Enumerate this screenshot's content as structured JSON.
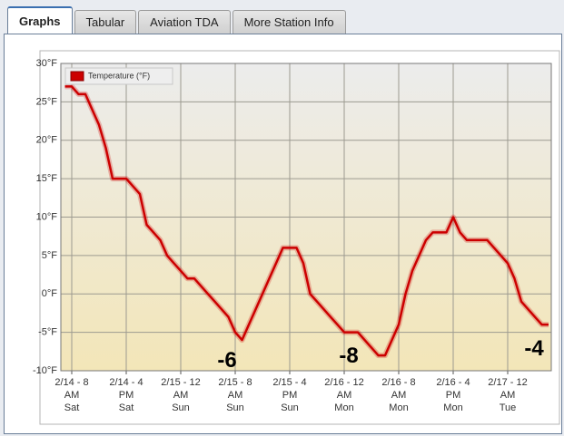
{
  "tabs": [
    "Graphs",
    "Tabular",
    "Aviation TDA",
    "More Station Info"
  ],
  "active_tab": 0,
  "chart_data": {
    "type": "line",
    "x": [
      7,
      8,
      9,
      10,
      11,
      12,
      13,
      14,
      15,
      16,
      17,
      18,
      19,
      20,
      21,
      22,
      23,
      24,
      25,
      26,
      27,
      28,
      29,
      30,
      31,
      32,
      33,
      34,
      35,
      36,
      37,
      38,
      39,
      40,
      41,
      42,
      43,
      44,
      45,
      46,
      47,
      48,
      49,
      50,
      51,
      52,
      53,
      54,
      55,
      56,
      57,
      58,
      59,
      60,
      61,
      62,
      63,
      64,
      65,
      66,
      67,
      68,
      69,
      70,
      71,
      72,
      73,
      74,
      75,
      76,
      77,
      78
    ],
    "series": [
      {
        "name": "Temperature (°F)",
        "color": "#cc0000",
        "values": [
          27,
          27,
          26,
          26,
          24,
          22,
          19,
          15,
          15,
          15,
          14,
          13,
          9,
          8,
          7,
          5,
          4,
          3,
          2,
          2,
          1,
          0,
          -1,
          -2,
          -3,
          -5,
          -6,
          -4,
          -2,
          0,
          2,
          4,
          6,
          6,
          6,
          4,
          0,
          -1,
          -2,
          -3,
          -4,
          -5,
          -5,
          -5,
          -6,
          -7,
          -8,
          -8,
          -6,
          -4,
          0,
          3,
          5,
          7,
          8,
          8,
          8,
          10,
          8,
          7,
          7,
          7,
          7,
          6,
          5,
          4,
          2,
          -1,
          -2,
          -3,
          -4,
          -4
        ]
      }
    ],
    "xlim": [
      6.4,
      78.4
    ],
    "xticks": [
      {
        "value": 8,
        "label": "2/14 - 8\nAM\nSat"
      },
      {
        "value": 16,
        "label": "2/14 - 4\nPM\nSat"
      },
      {
        "value": 24,
        "label": "2/15 - 12\nAM\nSun"
      },
      {
        "value": 32,
        "label": "2/15 - 8\nAM\nSun"
      },
      {
        "value": 40,
        "label": "2/15 - 4\nPM\nSun"
      },
      {
        "value": 48,
        "label": "2/16 - 12\nAM\nMon"
      },
      {
        "value": 56,
        "label": "2/16 - 8\nAM\nMon"
      },
      {
        "value": 64,
        "label": "2/16 - 4\nPM\nMon"
      },
      {
        "value": 72,
        "label": "2/17 - 12\nAM\nTue"
      }
    ],
    "ylim": [
      -10,
      30
    ],
    "yticks": [
      {
        "value": -10,
        "label": "-10°F"
      },
      {
        "value": -5,
        "label": "-5°F"
      },
      {
        "value": 0,
        "label": "0°F"
      },
      {
        "value": 5,
        "label": "5°F"
      },
      {
        "value": 10,
        "label": "10°F"
      },
      {
        "value": 15,
        "label": "15°F"
      },
      {
        "value": 20,
        "label": "20°F"
      },
      {
        "value": 25,
        "label": "25°F"
      },
      {
        "value": 30,
        "label": "30°F"
      }
    ],
    "grid": true,
    "legend": "upper left",
    "annotations": [
      "-6",
      "-8",
      "-4"
    ]
  }
}
